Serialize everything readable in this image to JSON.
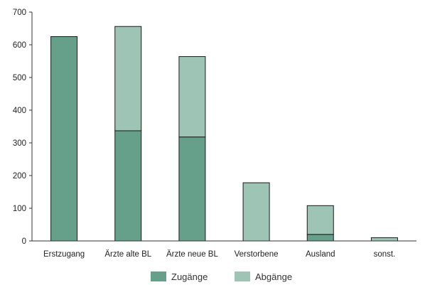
{
  "chart_data": {
    "type": "bar",
    "stacked": true,
    "title": "",
    "xlabel": "",
    "ylabel": "",
    "ylim": [
      0,
      700
    ],
    "yticks": [
      "0",
      "100",
      "200",
      "300",
      "400",
      "500",
      "600",
      "700"
    ],
    "categories": [
      "Erstzugang",
      "Ärzte alte BL",
      "Ärzte neue BL",
      "Verstorbene",
      "Ausland",
      "sonst."
    ],
    "series": [
      {
        "name": "Zugänge",
        "values": [
          625,
          337,
          318,
          0,
          20,
          0
        ],
        "color": "#66a08a"
      },
      {
        "name": "Abgänge",
        "values": [
          0,
          319,
          246,
          178,
          88,
          10
        ],
        "color": "#9dc4b5"
      }
    ],
    "grid": false,
    "legend_position": "bottom"
  }
}
